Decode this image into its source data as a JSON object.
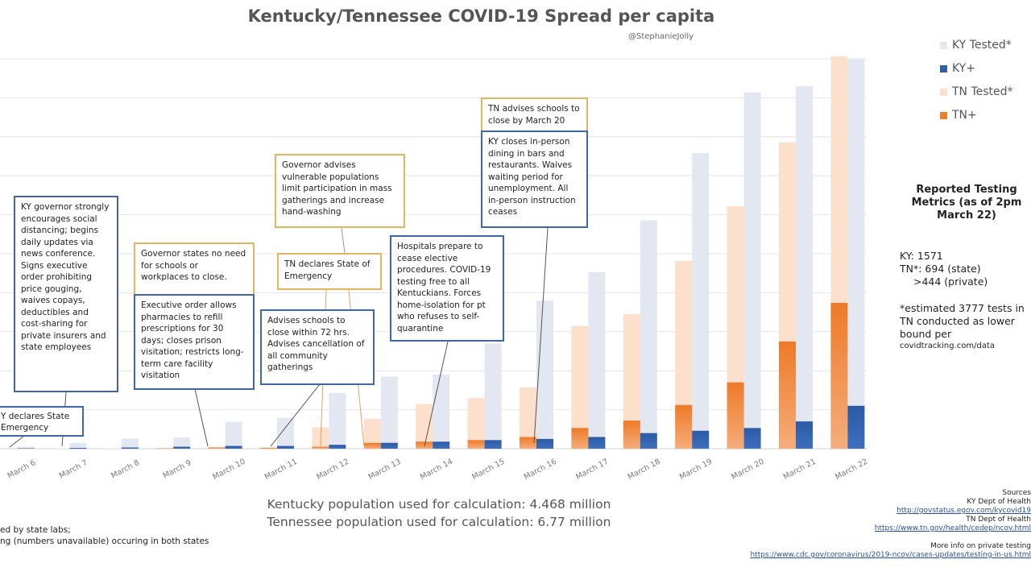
{
  "chart_data": {
    "type": "bar",
    "title": "Kentucky/Tennessee COVID-19 Spread per capita",
    "subtitle": "@StephanieJolly",
    "categories": [
      "March 6",
      "March 7",
      "March 8",
      "March 9",
      "March 10",
      "March 11",
      "March 12",
      "March 13",
      "March 14",
      "March 15",
      "March 16",
      "March 17",
      "March 18",
      "March 19",
      "March 20",
      "March 21",
      "March 22"
    ],
    "series": [
      {
        "name": "KY Tested*",
        "color": "#e3e7f2",
        "values": [
          0.05,
          0.15,
          0.26,
          0.29,
          0.69,
          0.79,
          1.43,
          1.85,
          1.9,
          2.7,
          3.8,
          4.53,
          5.86,
          7.58,
          9.14,
          9.3,
          10.0
        ]
      },
      {
        "name": "KY+",
        "color": "#2f5fa8",
        "values": [
          0.01,
          0.02,
          0.03,
          0.05,
          0.07,
          0.07,
          0.1,
          0.15,
          0.18,
          0.22,
          0.25,
          0.3,
          0.4,
          0.46,
          0.53,
          0.7,
          1.1
        ]
      },
      {
        "name": "TN Tested*",
        "color": "#fde0cc",
        "values": [
          0.0,
          0.01,
          0.01,
          0.02,
          0.05,
          0.04,
          0.55,
          0.77,
          1.14,
          1.3,
          1.57,
          3.15,
          3.45,
          4.82,
          6.22,
          7.86,
          10.3
        ]
      },
      {
        "name": "TN+",
        "color": "#ef7d2c",
        "values": [
          0.0,
          0.0,
          0.0,
          0.01,
          0.03,
          0.02,
          0.05,
          0.15,
          0.18,
          0.22,
          0.3,
          0.53,
          0.72,
          1.12,
          1.7,
          2.75,
          3.74
        ]
      }
    ],
    "ylim": [
      0,
      10
    ],
    "y_ticks_labeled": false,
    "grid": true,
    "legend": "top-right"
  },
  "annotations": {
    "ky_governor": "KY governor strongly encourages social distancing; begins daily updates via news conference. Signs executive order prohibiting price gouging, waives copays, deductibles and cost-sharing for private insurers and state employees",
    "ky_emergency": "Y declares State Emergency",
    "no_need_close": "Governor states no need for schools or workplaces to close.",
    "exec_order": "Executive order allows pharmacies to refill prescriptions for 30 days; closes prison visitation; restricts long-term care facility visitation",
    "vulnerable": "Governor advises vulnerable populations limit participation in mass gatherings and increase hand-washing",
    "tn_emergency": "TN declares State of Emergency",
    "schools_72": "Advises schools to close within 72 hrs. Advises cancellation of all community gatherings",
    "hospitals": "Hospitals prepare to cease elective procedures. COVID-19 testing free to all Kentuckians. Forces home-isolation for pt who refuses to self-quarantine",
    "tn_schools": "TN advises schools to close by March 20",
    "ky_dining": "KY closes in-person dining in bars and restaurants. Waives waiting period for unemployment. All in-person instruction ceases"
  },
  "metrics": {
    "title": "Reported Testing Metrics (as of 2pm March 22)",
    "ky": "KY:  1571",
    "tn_state": "TN*:  694 (state)",
    "tn_private": ">444 (private)",
    "note1": "*estimated 3777 tests in",
    "note2": "TN conducted as lower",
    "note3": "bound per",
    "note4": "covidtracking.com/data"
  },
  "population": {
    "ky": "Kentucky population used for calculation: 4.468 million",
    "tn": "Tennessee population used for calculation: 6.77 million"
  },
  "footnote": {
    "line1": "ed by state labs;",
    "line2": "ng (numbers unavailable) occuring in both states"
  },
  "sources": {
    "label": "Sources",
    "ky_dept": "KY Dept of Health",
    "ky_url": "http://govstatus.egov.com/kycovid19",
    "tn_dept": "TN Dept of Health",
    "tn_url": "https://www.tn.gov/health/cedep/ncov.html",
    "more": "More info on private testing",
    "cdc_url": "https://www.cdc.gov/coronavirus/2019-ncov/cases-updates/testing-in-us.html"
  }
}
